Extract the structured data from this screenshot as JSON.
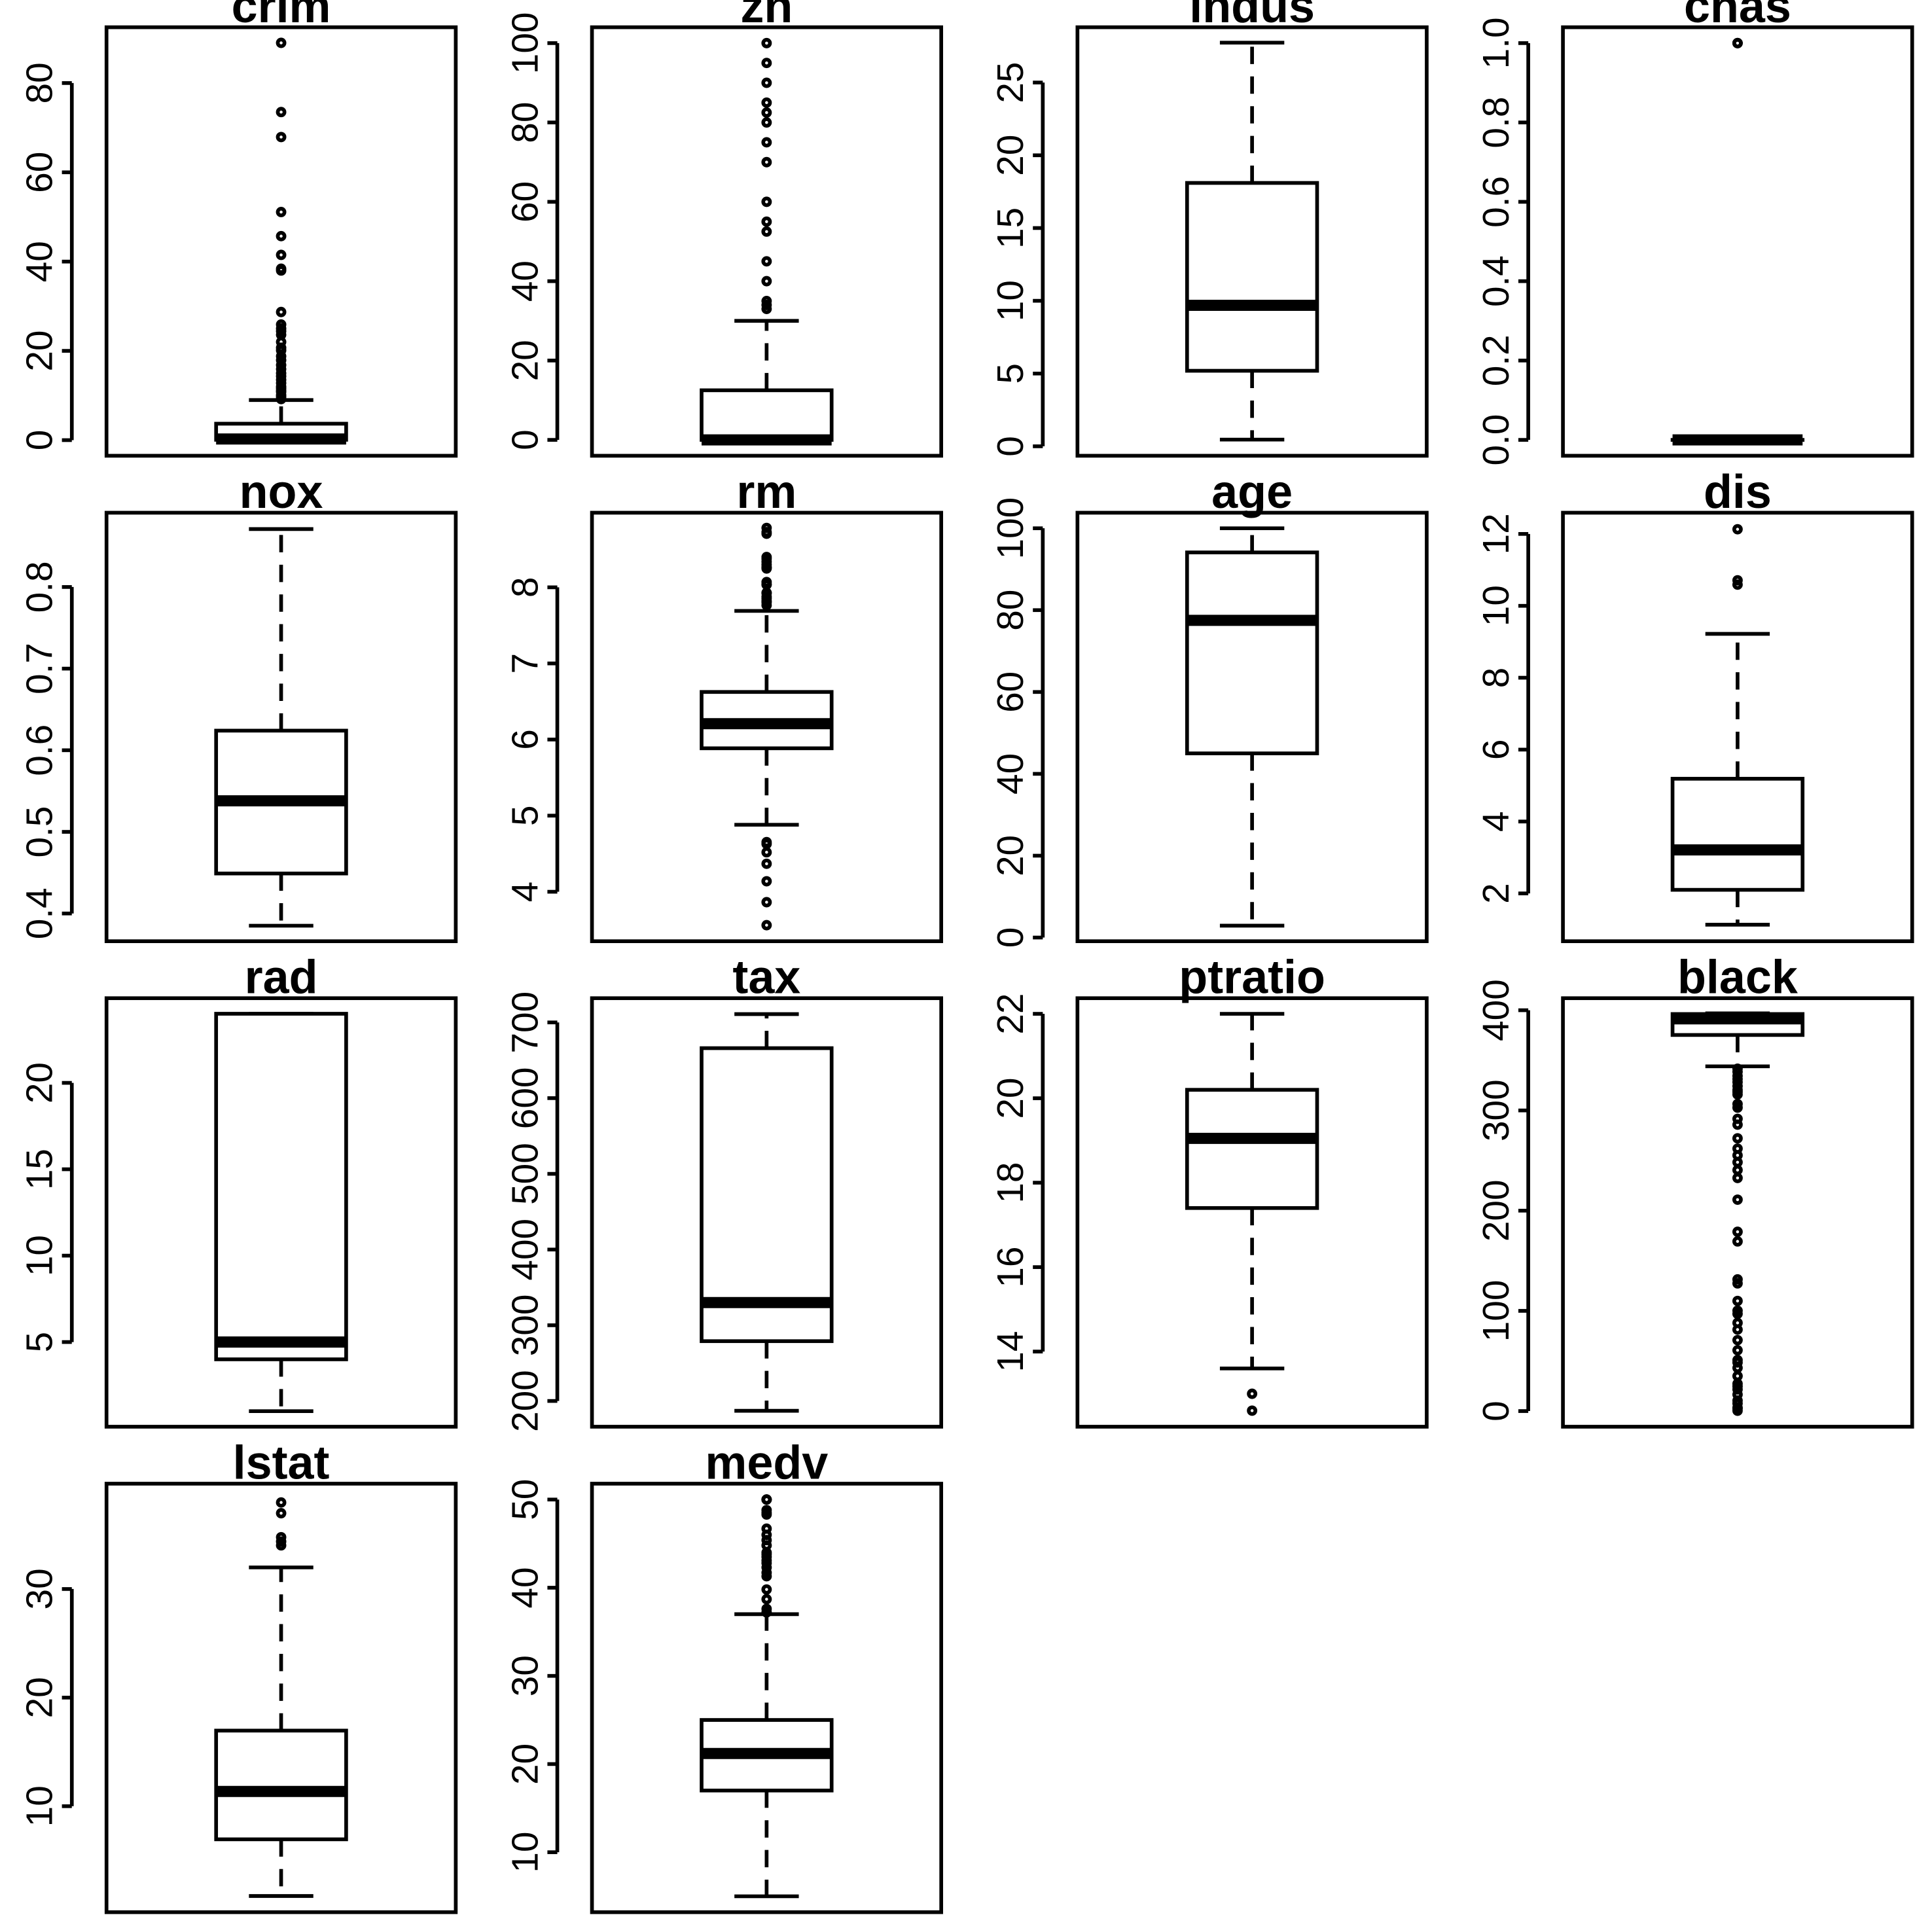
{
  "chart_data": [
    {
      "type": "boxplot",
      "title": "crim",
      "ylim": [
        -3.5,
        92.5
      ],
      "ticks": [
        0,
        20,
        40,
        60,
        80
      ],
      "tick_labels": [
        "0",
        "20",
        "40",
        "60",
        "80"
      ],
      "q1": 0.08,
      "median": 0.26,
      "q3": 3.68,
      "whisker_low": 0.006,
      "whisker_high": 8.98,
      "outliers": [
        9.2,
        9.7,
        10.1,
        10.8,
        11.1,
        11.6,
        12.0,
        12.8,
        13.5,
        14.3,
        15.0,
        15.9,
        16.8,
        17.9,
        18.8,
        20.1,
        20.7,
        22.0,
        23.6,
        24.4,
        25.0,
        25.9,
        28.7,
        38.0,
        38.4,
        41.5,
        45.7,
        51.1,
        67.9,
        73.5,
        89.0
      ]
    },
    {
      "type": "boxplot",
      "title": "zn",
      "ylim": [
        -4,
        104
      ],
      "ticks": [
        0,
        20,
        40,
        60,
        80,
        100
      ],
      "tick_labels": [
        "0",
        "20",
        "40",
        "60",
        "80",
        "100"
      ],
      "q1": 0,
      "median": 0,
      "q3": 12.5,
      "whisker_low": 0,
      "whisker_high": 30,
      "outliers": [
        33,
        34,
        35,
        40,
        45,
        52.5,
        55,
        60,
        70,
        75,
        80,
        82.5,
        85,
        90,
        95,
        100
      ]
    },
    {
      "type": "boxplot",
      "title": "indus",
      "ylim": [
        -0.65,
        28.8
      ],
      "ticks": [
        0,
        5,
        10,
        15,
        20,
        25
      ],
      "tick_labels": [
        "0",
        "5",
        "10",
        "15",
        "20",
        "25"
      ],
      "q1": 5.19,
      "median": 9.69,
      "q3": 18.1,
      "whisker_low": 0.46,
      "whisker_high": 27.74,
      "outliers": []
    },
    {
      "type": "boxplot",
      "title": "chas",
      "ylim": [
        -0.04,
        1.04
      ],
      "ticks": [
        0.0,
        0.2,
        0.4,
        0.6,
        0.8,
        1.0
      ],
      "tick_labels": [
        "0.0",
        "0.2",
        "0.4",
        "0.6",
        "0.8",
        "1.0"
      ],
      "q1": 0,
      "median": 0,
      "q3": 0,
      "whisker_low": 0,
      "whisker_high": 0,
      "outliers": [
        1,
        1,
        1
      ]
    },
    {
      "type": "boxplot",
      "title": "nox",
      "ylim": [
        0.366,
        0.891
      ],
      "ticks": [
        0.4,
        0.5,
        0.6,
        0.7,
        0.8
      ],
      "tick_labels": [
        "0.4",
        "0.5",
        "0.6",
        "0.7",
        "0.8"
      ],
      "q1": 0.449,
      "median": 0.538,
      "q3": 0.624,
      "whisker_low": 0.385,
      "whisker_high": 0.871,
      "outliers": []
    },
    {
      "type": "boxplot",
      "title": "rm",
      "ylim": [
        3.35,
        8.98
      ],
      "ticks": [
        4,
        5,
        6,
        7,
        8
      ],
      "tick_labels": [
        "4",
        "5",
        "6",
        "7",
        "8"
      ],
      "q1": 5.885,
      "median": 6.208,
      "q3": 6.625,
      "whisker_low": 4.88,
      "whisker_high": 7.69,
      "outliers": [
        3.561,
        3.863,
        4.138,
        4.368,
        4.519,
        4.628,
        4.652,
        7.765,
        7.802,
        7.82,
        7.853,
        7.875,
        7.923,
        7.929,
        8.034,
        8.04,
        8.069,
        8.247,
        8.259,
        8.266,
        8.297,
        8.337,
        8.375,
        8.398,
        8.704,
        8.725,
        8.78
      ]
    },
    {
      "type": "boxplot",
      "title": "age",
      "ylim": [
        -0.9,
        103.8
      ],
      "ticks": [
        0,
        20,
        40,
        60,
        80,
        100
      ],
      "tick_labels": [
        "0",
        "20",
        "40",
        "60",
        "80",
        "100"
      ],
      "q1": 45.0,
      "median": 77.5,
      "q3": 94.1,
      "whisker_low": 2.9,
      "whisker_high": 100,
      "outliers": []
    },
    {
      "type": "boxplot",
      "title": "dis",
      "ylim": [
        0.67,
        12.59
      ],
      "ticks": [
        2,
        4,
        6,
        8,
        10,
        12
      ],
      "tick_labels": [
        "2",
        "4",
        "6",
        "8",
        "10",
        "12"
      ],
      "q1": 2.1,
      "median": 3.21,
      "q3": 5.19,
      "whisker_low": 1.13,
      "whisker_high": 9.22,
      "outliers": [
        10.59,
        10.71,
        12.13
      ]
    },
    {
      "type": "boxplot",
      "title": "rad",
      "ylim": [
        0.1,
        24.9
      ],
      "ticks": [
        5,
        10,
        15,
        20
      ],
      "tick_labels": [
        "5",
        "10",
        "15",
        "20"
      ],
      "q1": 4,
      "median": 5,
      "q3": 24,
      "whisker_low": 1,
      "whisker_high": 24,
      "outliers": []
    },
    {
      "type": "boxplot",
      "title": "tax",
      "ylim": [
        166,
        732
      ],
      "ticks": [
        200,
        300,
        400,
        500,
        600,
        700
      ],
      "tick_labels": [
        "200",
        "300",
        "400",
        "500",
        "600",
        "700"
      ],
      "q1": 279,
      "median": 330,
      "q3": 666,
      "whisker_low": 187,
      "whisker_high": 711,
      "outliers": []
    },
    {
      "type": "boxplot",
      "title": "ptratio",
      "ylim": [
        12.22,
        22.37
      ],
      "ticks": [
        14,
        16,
        18,
        20,
        22
      ],
      "tick_labels": [
        "14",
        "16",
        "18",
        "20",
        "22"
      ],
      "q1": 17.4,
      "median": 19.05,
      "q3": 20.2,
      "whisker_low": 13.6,
      "whisker_high": 22.0,
      "outliers": [
        12.6,
        13.0
      ]
    },
    {
      "type": "boxplot",
      "title": "black",
      "ylim": [
        -15.6,
        412
      ],
      "ticks": [
        0,
        100,
        200,
        300,
        400
      ],
      "tick_labels": [
        "0",
        "100",
        "200",
        "300",
        "400"
      ],
      "q1": 375.3,
      "median": 391.4,
      "q3": 396.2,
      "whisker_low": 344,
      "whisker_high": 396.9,
      "outliers": [
        0.32,
        2.6,
        3.5,
        7.7,
        10.5,
        16.5,
        21.6,
        24.6,
        27.3,
        35.0,
        43.1,
        48.5,
        50.9,
        60.7,
        70.8,
        81.3,
        88.0,
        97.0,
        100.2,
        109.9,
        127.4,
        131.4,
        169.3,
        178.9,
        210.97,
        232.6,
        240.5,
        248.3,
        255.2,
        261.9,
        272.2,
        285.8,
        291.6,
        302.8,
        306.4,
        316.0,
        318.4,
        320.5,
        324.3,
        328.3,
        331.3,
        334.4,
        338.6,
        341.6
      ]
    },
    {
      "type": "boxplot",
      "title": "lstat",
      "ylim": [
        0.24,
        39.7
      ],
      "ticks": [
        10,
        20,
        30
      ],
      "tick_labels": [
        "10",
        "20",
        "30"
      ],
      "q1": 6.95,
      "median": 11.36,
      "q3": 16.96,
      "whisker_low": 1.73,
      "whisker_high": 31.99,
      "outliers": [
        34.02,
        34.37,
        34.77,
        36.98,
        37.97
      ]
    },
    {
      "type": "boxplot",
      "title": "medv",
      "ylim": [
        3.2,
        51.8
      ],
      "ticks": [
        10,
        20,
        30,
        40,
        50
      ],
      "tick_labels": [
        "10",
        "20",
        "30",
        "40",
        "50"
      ],
      "q1": 17.0,
      "median": 21.2,
      "q3": 25.0,
      "whisker_low": 5,
      "whisker_high": 37.0,
      "outliers": [
        37.2,
        37.6,
        38.7,
        39.8,
        41.3,
        41.7,
        42.3,
        42.8,
        43.1,
        43.5,
        43.8,
        44.0,
        44.8,
        45.4,
        46.0,
        46.7,
        48.3,
        48.5,
        48.8,
        50,
        50,
        50
      ]
    }
  ]
}
